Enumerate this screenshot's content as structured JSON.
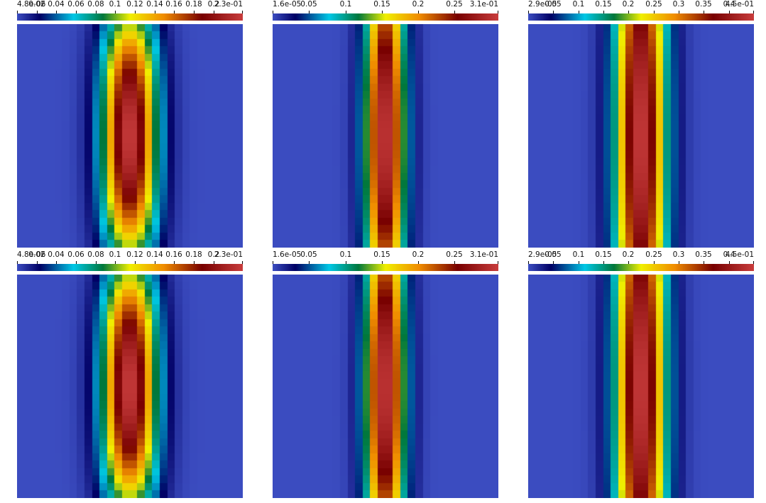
{
  "chart_data": [
    {
      "type": "heatmap",
      "colormap": "jet",
      "field_shape": "ellipse",
      "colorbar": {
        "range": [
          4.8e-06,
          0.23
        ],
        "tick_values": [
          4.8e-06,
          0.02,
          0.04,
          0.06,
          0.08,
          0.1,
          0.12,
          0.14,
          0.16,
          0.18,
          0.2,
          0.23
        ],
        "tick_labels": [
          "4.8e-06",
          "0.02",
          "0.04",
          "0.06",
          "0.08",
          "0.1",
          "0.12",
          "0.14",
          "0.16",
          "0.18",
          "0.2",
          "2.3e-01"
        ]
      }
    },
    {
      "type": "heatmap",
      "colormap": "jet",
      "field_shape": "band",
      "colorbar": {
        "range": [
          1.6e-05,
          0.31
        ],
        "tick_values": [
          1.6e-05,
          0.05,
          0.1,
          0.15,
          0.2,
          0.25,
          0.31
        ],
        "tick_labels": [
          "1.6e-05",
          "0.05",
          "0.1",
          "0.15",
          "0.2",
          "0.25",
          "3.1e-01"
        ]
      }
    },
    {
      "type": "heatmap",
      "colormap": "jet",
      "field_shape": "wide-band",
      "colorbar": {
        "range": [
          2.9e-05,
          0.45
        ],
        "tick_values": [
          2.9e-05,
          0.05,
          0.1,
          0.15,
          0.2,
          0.25,
          0.3,
          0.35,
          0.4,
          0.45
        ],
        "tick_labels": [
          "2.9e-05",
          "0.05",
          "0.1",
          "0.15",
          "0.2",
          "0.25",
          "0.3",
          "0.35",
          "0.4",
          "4.5e-01"
        ]
      }
    },
    {
      "type": "heatmap",
      "colormap": "jet",
      "field_shape": "ellipse",
      "colorbar": {
        "range": [
          4.8e-06,
          0.23
        ],
        "tick_values": [
          4.8e-06,
          0.02,
          0.04,
          0.06,
          0.08,
          0.1,
          0.12,
          0.14,
          0.16,
          0.18,
          0.2,
          0.23
        ],
        "tick_labels": [
          "4.8e-06",
          "0.02",
          "0.04",
          "0.06",
          "0.08",
          "0.1",
          "0.12",
          "0.14",
          "0.16",
          "0.18",
          "0.2",
          "2.3e-01"
        ]
      }
    },
    {
      "type": "heatmap",
      "colormap": "jet",
      "field_shape": "band",
      "colorbar": {
        "range": [
          1.6e-05,
          0.31
        ],
        "tick_values": [
          1.6e-05,
          0.05,
          0.1,
          0.15,
          0.2,
          0.25,
          0.31
        ],
        "tick_labels": [
          "1.6e-05",
          "0.05",
          "0.1",
          "0.15",
          "0.2",
          "0.25",
          "3.1e-01"
        ]
      }
    },
    {
      "type": "heatmap",
      "colormap": "jet",
      "field_shape": "wide-band",
      "colorbar": {
        "range": [
          2.9e-05,
          0.45
        ],
        "tick_values": [
          2.9e-05,
          0.05,
          0.1,
          0.15,
          0.2,
          0.25,
          0.3,
          0.35,
          0.4,
          0.45
        ],
        "tick_labels": [
          "2.9e-05",
          "0.05",
          "0.1",
          "0.15",
          "0.2",
          "0.25",
          "0.3",
          "0.35",
          "0.4",
          "4.5e-01"
        ]
      }
    }
  ]
}
